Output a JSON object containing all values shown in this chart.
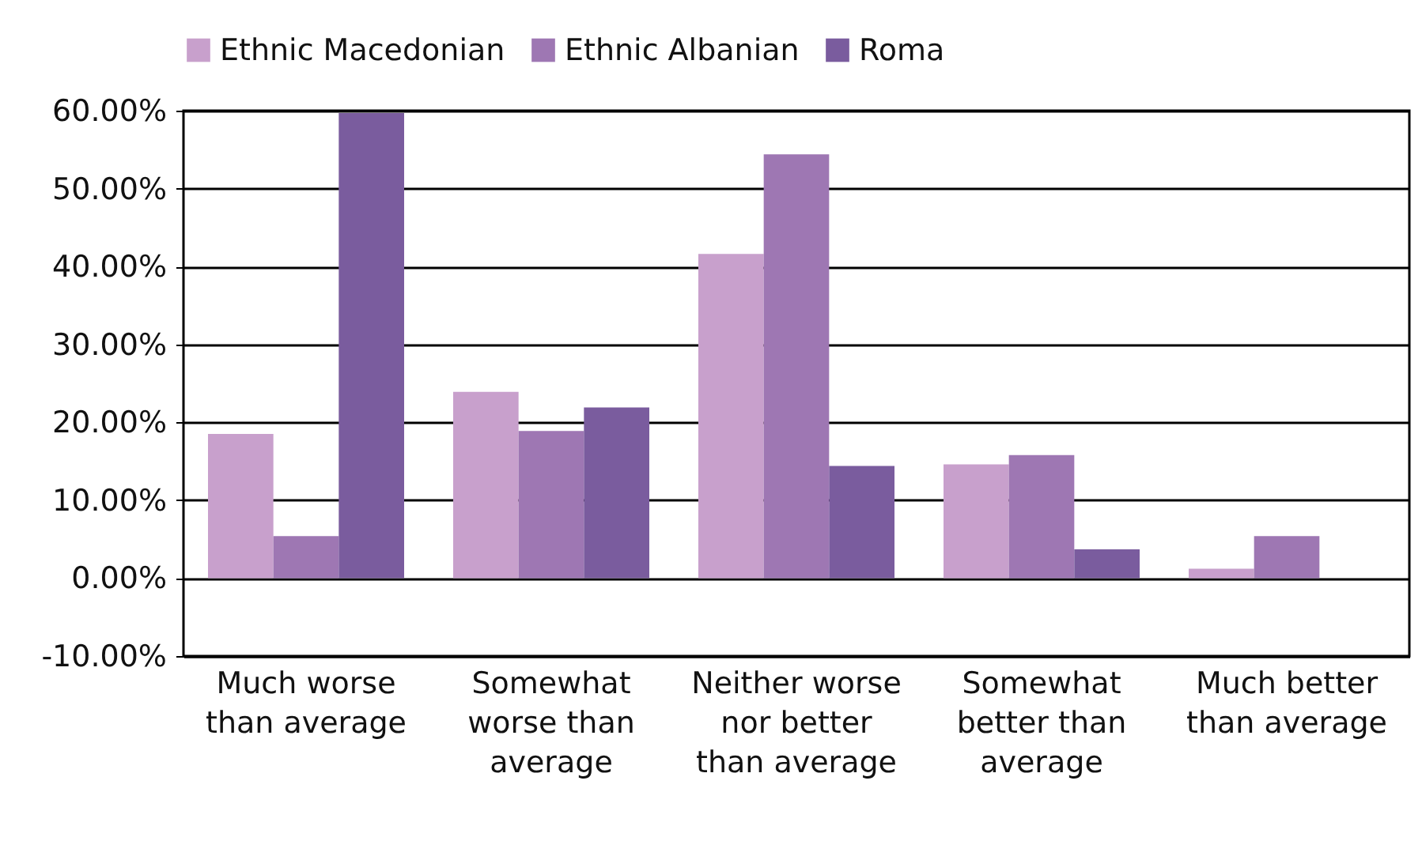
{
  "chart_data": {
    "type": "bar",
    "categories": [
      "Much worse than average",
      "Somewhat worse than average",
      "Neither worse nor better than average",
      "Somewhat better than average",
      "Much better than average"
    ],
    "series": [
      {
        "name": "Ethnic Macedonian",
        "color": "#c8a0cc",
        "values": [
          18.5,
          23.9,
          41.6,
          14.6,
          1.2
        ]
      },
      {
        "name": "Ethnic Albanian",
        "color": "#9e77b3",
        "values": [
          5.4,
          18.9,
          54.4,
          15.8,
          5.4
        ]
      },
      {
        "name": "Roma",
        "color": "#7a5c9e",
        "values": [
          59.7,
          21.9,
          14.4,
          3.7,
          0
        ]
      }
    ],
    "ylim": [
      -10,
      60
    ],
    "yticks": [
      {
        "value": -10,
        "label": "-10.00%"
      },
      {
        "value": 0,
        "label": "0.00%"
      },
      {
        "value": 10,
        "label": "10.00%"
      },
      {
        "value": 20,
        "label": "20.00%"
      },
      {
        "value": 30,
        "label": "30.00%"
      },
      {
        "value": 40,
        "label": "40.00%"
      },
      {
        "value": 50,
        "label": "50.00%"
      },
      {
        "value": 60,
        "label": "60.00%"
      }
    ],
    "grid": "y",
    "legend": "top"
  }
}
